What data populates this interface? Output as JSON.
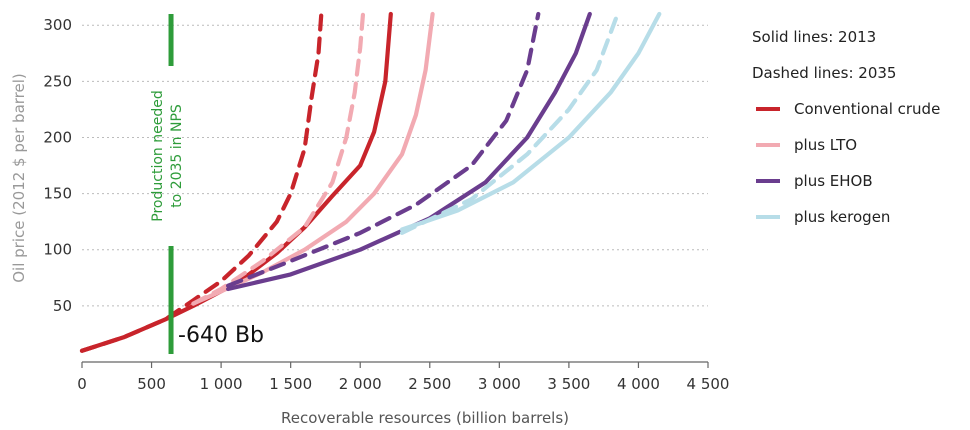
{
  "chart_data": {
    "type": "line",
    "title": "",
    "xlabel": "Recoverable resources (billion barrels)",
    "ylabel": "Oil price (2012 $ per barrel)",
    "xlim": [
      0,
      4500
    ],
    "ylim": [
      0,
      310
    ],
    "x_ticks": [
      0,
      500,
      1000,
      1500,
      2000,
      2500,
      3000,
      3500,
      4000,
      4500
    ],
    "x_tick_labels": [
      "0",
      "500",
      "1 000",
      "1 500",
      "2 000",
      "2 500",
      "3 000",
      "3 500",
      "4 000",
      "4 500"
    ],
    "y_ticks": [
      50,
      100,
      150,
      200,
      250,
      300
    ],
    "y_tick_labels": [
      "50",
      "100",
      "150",
      "200",
      "250",
      "300"
    ],
    "grid": "horizontal dotted",
    "legend_position": "right",
    "legend_notes": [
      "Solid lines: 2013",
      "Dashed lines: 2035"
    ],
    "legend_entries": [
      {
        "label": "Conventional crude",
        "color": "#c8242b"
      },
      {
        "label": "plus LTO",
        "color": "#f2aab2"
      },
      {
        "label": "plus EHOB",
        "color": "#6a3d8e"
      },
      {
        "label": "plus kerogen",
        "color": "#b7dde8"
      }
    ],
    "series": [
      {
        "name": "Conventional crude",
        "year": "2013",
        "style": "solid",
        "color": "#c8242b",
        "points": [
          [
            0,
            10
          ],
          [
            300,
            22
          ],
          [
            600,
            38
          ],
          [
            800,
            50
          ],
          [
            1000,
            63
          ],
          [
            1200,
            78
          ],
          [
            1400,
            97
          ],
          [
            1600,
            120
          ],
          [
            1800,
            148
          ],
          [
            2000,
            175
          ],
          [
            2100,
            205
          ],
          [
            2180,
            250
          ],
          [
            2220,
            310
          ]
        ]
      },
      {
        "name": "plus LTO",
        "year": "2013",
        "style": "solid",
        "color": "#f2aab2",
        "points": [
          [
            800,
            52
          ],
          [
            1000,
            63
          ],
          [
            1300,
            80
          ],
          [
            1600,
            100
          ],
          [
            1900,
            125
          ],
          [
            2100,
            150
          ],
          [
            2300,
            185
          ],
          [
            2400,
            220
          ],
          [
            2470,
            260
          ],
          [
            2520,
            310
          ]
        ]
      },
      {
        "name": "plus EHOB",
        "year": "2013",
        "style": "solid",
        "color": "#6a3d8e",
        "points": [
          [
            1050,
            65
          ],
          [
            1500,
            78
          ],
          [
            2000,
            100
          ],
          [
            2500,
            128
          ],
          [
            2900,
            160
          ],
          [
            3200,
            200
          ],
          [
            3400,
            240
          ],
          [
            3550,
            275
          ],
          [
            3650,
            310
          ]
        ]
      },
      {
        "name": "plus kerogen",
        "year": "2013",
        "style": "solid",
        "color": "#b7dde8",
        "points": [
          [
            2300,
            118
          ],
          [
            2700,
            135
          ],
          [
            3100,
            160
          ],
          [
            3500,
            200
          ],
          [
            3800,
            240
          ],
          [
            4000,
            275
          ],
          [
            4150,
            310
          ]
        ]
      },
      {
        "name": "Conventional crude",
        "year": "2035",
        "style": "dashed",
        "color": "#c8242b",
        "points": [
          [
            0,
            10
          ],
          [
            300,
            22
          ],
          [
            600,
            38
          ],
          [
            800,
            55
          ],
          [
            1000,
            72
          ],
          [
            1200,
            95
          ],
          [
            1400,
            125
          ],
          [
            1500,
            150
          ],
          [
            1600,
            190
          ],
          [
            1650,
            235
          ],
          [
            1700,
            275
          ],
          [
            1720,
            310
          ]
        ]
      },
      {
        "name": "plus LTO",
        "year": "2035",
        "style": "dashed",
        "color": "#f2aab2",
        "points": [
          [
            800,
            52
          ],
          [
            1000,
            65
          ],
          [
            1300,
            90
          ],
          [
            1600,
            120
          ],
          [
            1800,
            160
          ],
          [
            1900,
            200
          ],
          [
            1960,
            240
          ],
          [
            2000,
            280
          ],
          [
            2020,
            310
          ]
        ]
      },
      {
        "name": "plus EHOB",
        "year": "2035",
        "style": "dashed",
        "color": "#6a3d8e",
        "points": [
          [
            1050,
            68
          ],
          [
            1500,
            90
          ],
          [
            2000,
            115
          ],
          [
            2400,
            140
          ],
          [
            2800,
            175
          ],
          [
            3050,
            215
          ],
          [
            3200,
            260
          ],
          [
            3280,
            310
          ]
        ]
      },
      {
        "name": "plus kerogen",
        "year": "2035",
        "style": "dashed",
        "color": "#b7dde8",
        "points": [
          [
            2300,
            115
          ],
          [
            2800,
            145
          ],
          [
            3200,
            185
          ],
          [
            3500,
            225
          ],
          [
            3700,
            260
          ],
          [
            3850,
            310
          ]
        ]
      }
    ],
    "annotations": {
      "vertical_line_x": 640,
      "vertical_line_color": "#2e9c3a",
      "vertical_label_line1": "Production needed",
      "vertical_label_line2": "to 2035 in NPS",
      "point_label": "-640 Bb"
    }
  }
}
